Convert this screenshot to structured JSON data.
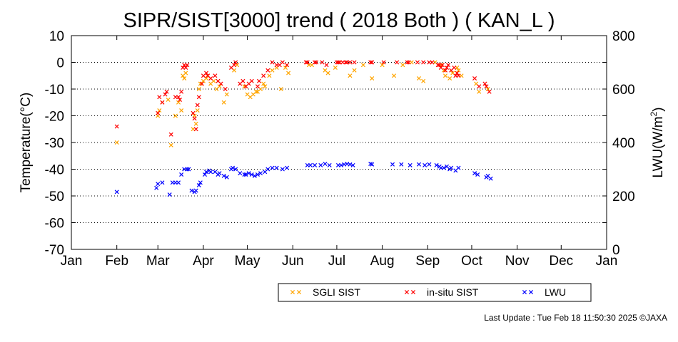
{
  "chart_data": {
    "type": "scatter",
    "title": "SIPR/SIST[3000] trend ( 2018 Both ) ( KAN_L )",
    "ylabel": "Temperature(°C)",
    "ylabel_right_main": "LWU(W/m",
    "ylabel_right_sup": "2",
    "ylabel_right_end": ")",
    "x_ticks": [
      "Jan",
      "Feb",
      "Mar",
      "Apr",
      "May",
      "Jun",
      "Jul",
      "Aug",
      "Sep",
      "Oct",
      "Nov",
      "Dec",
      "Jan"
    ],
    "ylim": [
      -70,
      10
    ],
    "y_ticks": [
      "10",
      "0",
      "-10",
      "-20",
      "-30",
      "-40",
      "-50",
      "-60",
      "-70"
    ],
    "y2lim": [
      0,
      800
    ],
    "y2_ticks": [
      "0",
      "200",
      "400",
      "600",
      "800"
    ],
    "grid": "dotted-horizontal",
    "legend_position": "bottom-right",
    "series": [
      {
        "name": "SGLI SIST",
        "axis": "left",
        "color": "#ffa500",
        "points": [
          [
            31,
            -30
          ],
          [
            59,
            -20
          ],
          [
            60,
            -18
          ],
          [
            62,
            -15
          ],
          [
            66,
            -14
          ],
          [
            68,
            -31
          ],
          [
            71,
            -20
          ],
          [
            73,
            -15
          ],
          [
            75,
            -18
          ],
          [
            76,
            -5
          ],
          [
            77,
            -6
          ],
          [
            78,
            -4
          ],
          [
            83,
            -25
          ],
          [
            84,
            -20
          ],
          [
            85,
            -23
          ],
          [
            86,
            -18
          ],
          [
            87,
            -10
          ],
          [
            88,
            -8
          ],
          [
            90,
            -7
          ],
          [
            92,
            -6
          ],
          [
            93,
            -5
          ],
          [
            95,
            -8
          ],
          [
            97,
            -7
          ],
          [
            99,
            -10
          ],
          [
            101,
            -9
          ],
          [
            104,
            -15
          ],
          [
            106,
            -12
          ],
          [
            111,
            -3
          ],
          [
            113,
            -1
          ],
          [
            118,
            -9
          ],
          [
            120,
            -12
          ],
          [
            122,
            -13
          ],
          [
            124,
            -12
          ],
          [
            126,
            -11
          ],
          [
            127,
            -11
          ],
          [
            129,
            -10
          ],
          [
            131,
            -8
          ],
          [
            132,
            -9
          ],
          [
            135,
            -5
          ],
          [
            137,
            -3
          ],
          [
            140,
            -2
          ],
          [
            143,
            -10
          ],
          [
            146,
            -2
          ],
          [
            148,
            -4
          ],
          [
            162,
            -1
          ],
          [
            164,
            -1
          ],
          [
            173,
            -3
          ],
          [
            175,
            -4
          ],
          [
            180,
            -2
          ],
          [
            183,
            0
          ],
          [
            190,
            -5
          ],
          [
            193,
            -3
          ],
          [
            199,
            -1
          ],
          [
            205,
            -6
          ],
          [
            212,
            -1
          ],
          [
            220,
            -5
          ],
          [
            226,
            -1
          ],
          [
            232,
            0
          ],
          [
            237,
            -6
          ],
          [
            240,
            -7
          ],
          [
            248,
            0
          ],
          [
            252,
            -1
          ],
          [
            254,
            -3
          ],
          [
            255,
            -5
          ],
          [
            258,
            -6
          ],
          [
            260,
            -4
          ],
          [
            263,
            -2
          ],
          [
            264,
            -3
          ],
          [
            266,
            -5
          ],
          [
            276,
            -8
          ],
          [
            278,
            -11
          ],
          [
            284,
            -10
          ]
        ]
      },
      {
        "name": "in-situ SIST",
        "axis": "left",
        "color": "#ff0000",
        "points": [
          [
            31,
            -24
          ],
          [
            59,
            -19
          ],
          [
            60,
            -13
          ],
          [
            62,
            -15
          ],
          [
            64,
            -12
          ],
          [
            65,
            -11
          ],
          [
            68,
            -27
          ],
          [
            71,
            -13
          ],
          [
            73,
            -13
          ],
          [
            74,
            -14
          ],
          [
            75,
            -11
          ],
          [
            76,
            -2
          ],
          [
            77,
            -1
          ],
          [
            78,
            -2
          ],
          [
            79,
            -1
          ],
          [
            83,
            -19
          ],
          [
            84,
            -21
          ],
          [
            85,
            -25
          ],
          [
            86,
            -16
          ],
          [
            87,
            -13
          ],
          [
            89,
            -8
          ],
          [
            90,
            -5
          ],
          [
            92,
            -4
          ],
          [
            93,
            -5
          ],
          [
            95,
            -6
          ],
          [
            98,
            -5
          ],
          [
            100,
            -7
          ],
          [
            102,
            -8
          ],
          [
            105,
            -10
          ],
          [
            109,
            -2
          ],
          [
            111,
            -1
          ],
          [
            112,
            0
          ],
          [
            115,
            -8
          ],
          [
            117,
            -7
          ],
          [
            119,
            -9
          ],
          [
            121,
            -8
          ],
          [
            123,
            -7
          ],
          [
            127,
            -9
          ],
          [
            128,
            -7
          ],
          [
            131,
            -5
          ],
          [
            134,
            -3
          ],
          [
            137,
            0
          ],
          [
            140,
            -1
          ],
          [
            142,
            -1
          ],
          [
            144,
            0
          ],
          [
            147,
            -1
          ],
          [
            160,
            0
          ],
          [
            161,
            0
          ],
          [
            166,
            0
          ],
          [
            167,
            0
          ],
          [
            171,
            0
          ],
          [
            174,
            -1
          ],
          [
            181,
            0
          ],
          [
            182,
            0
          ],
          [
            183,
            0
          ],
          [
            185,
            0
          ],
          [
            187,
            0
          ],
          [
            188,
            0
          ],
          [
            190,
            0
          ],
          [
            193,
            0
          ],
          [
            204,
            0
          ],
          [
            205,
            0
          ],
          [
            213,
            0
          ],
          [
            222,
            0
          ],
          [
            229,
            0
          ],
          [
            230,
            0
          ],
          [
            236,
            0
          ],
          [
            240,
            0
          ],
          [
            244,
            0
          ],
          [
            246,
            0
          ],
          [
            250,
            -1
          ],
          [
            251,
            -1
          ],
          [
            252,
            -2
          ],
          [
            253,
            -1
          ],
          [
            255,
            -3
          ],
          [
            256,
            -2
          ],
          [
            257,
            -1
          ],
          [
            259,
            -3
          ],
          [
            261,
            -2
          ],
          [
            262,
            -5
          ],
          [
            263,
            -4
          ],
          [
            264,
            -5
          ],
          [
            275,
            -6
          ],
          [
            278,
            -9
          ],
          [
            282,
            -8
          ],
          [
            283,
            -9
          ],
          [
            285,
            -11
          ]
        ]
      },
      {
        "name": "LWU",
        "axis": "right",
        "color": "#0000ff",
        "points": [
          [
            31,
            215
          ],
          [
            58,
            230
          ],
          [
            59,
            245
          ],
          [
            62,
            250
          ],
          [
            67,
            205
          ],
          [
            69,
            250
          ],
          [
            71,
            250
          ],
          [
            73,
            250
          ],
          [
            75,
            280
          ],
          [
            77,
            300
          ],
          [
            79,
            300
          ],
          [
            80,
            300
          ],
          [
            82,
            220
          ],
          [
            84,
            215
          ],
          [
            85,
            220
          ],
          [
            87,
            240
          ],
          [
            88,
            250
          ],
          [
            91,
            280
          ],
          [
            92,
            290
          ],
          [
            94,
            295
          ],
          [
            95,
            290
          ],
          [
            98,
            290
          ],
          [
            100,
            280
          ],
          [
            101,
            285
          ],
          [
            104,
            275
          ],
          [
            106,
            270
          ],
          [
            109,
            300
          ],
          [
            110,
            305
          ],
          [
            112,
            300
          ],
          [
            115,
            285
          ],
          [
            118,
            280
          ],
          [
            119,
            280
          ],
          [
            121,
            285
          ],
          [
            123,
            280
          ],
          [
            125,
            275
          ],
          [
            127,
            280
          ],
          [
            129,
            285
          ],
          [
            132,
            290
          ],
          [
            134,
            300
          ],
          [
            137,
            305
          ],
          [
            140,
            305
          ],
          [
            144,
            300
          ],
          [
            147,
            305
          ],
          [
            161,
            315
          ],
          [
            163,
            315
          ],
          [
            166,
            315
          ],
          [
            170,
            315
          ],
          [
            173,
            320
          ],
          [
            176,
            315
          ],
          [
            182,
            315
          ],
          [
            184,
            315
          ],
          [
            186,
            318
          ],
          [
            188,
            320
          ],
          [
            190,
            318
          ],
          [
            192,
            315
          ],
          [
            204,
            320
          ],
          [
            205,
            318
          ],
          [
            219,
            318
          ],
          [
            225,
            318
          ],
          [
            231,
            315
          ],
          [
            237,
            318
          ],
          [
            241,
            315
          ],
          [
            244,
            318
          ],
          [
            249,
            315
          ],
          [
            251,
            310
          ],
          [
            252,
            305
          ],
          [
            254,
            305
          ],
          [
            256,
            310
          ],
          [
            258,
            300
          ],
          [
            259,
            305
          ],
          [
            262,
            295
          ],
          [
            264,
            305
          ],
          [
            275,
            285
          ],
          [
            277,
            280
          ],
          [
            283,
            270
          ],
          [
            284,
            275
          ],
          [
            286,
            265
          ]
        ]
      }
    ]
  },
  "footer": {
    "update_text": "Last Update : Tue Feb 18 11:50:30 2025  ©JAXA"
  }
}
